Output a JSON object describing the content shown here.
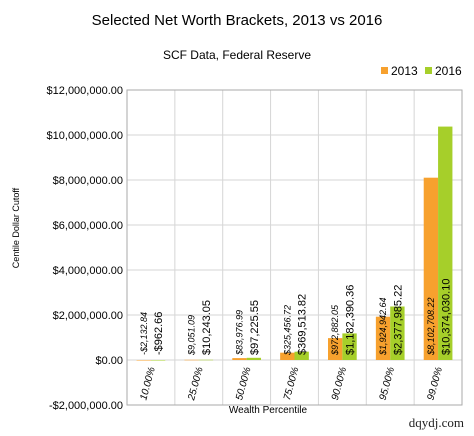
{
  "chart_data": {
    "type": "bar",
    "title": "Selected Net Worth Brackets, 2013 vs 2016",
    "subtitle": "SCF Data, Federal Reserve",
    "xlabel": "Wealth Percentile",
    "ylabel": "Centile Dollar Cutoff",
    "ylim": [
      -2000000,
      12000000
    ],
    "yticks": [
      -2000000,
      0,
      2000000,
      4000000,
      6000000,
      8000000,
      10000000,
      12000000
    ],
    "ytick_labels": [
      "-$2,000,000.00",
      "$0.00",
      "$2,000,000.00",
      "$4,000,000.00",
      "$6,000,000.00",
      "$8,000,000.00",
      "$10,000,000.00",
      "$12,000,000.00"
    ],
    "grid": true,
    "legend": "top-right",
    "categories": [
      "10.00%",
      "25.00%",
      "50.00%",
      "75.00%",
      "90.00%",
      "95.00%",
      "99.00%"
    ],
    "series": [
      {
        "name": "2013",
        "color": "#f7a12e",
        "values": [
          -2132.84,
          9051.09,
          83976.99,
          325456.72,
          972882.05,
          1924942.64,
          8102708.22
        ],
        "labels": [
          "-$2,132.84",
          "$9,051.09",
          "$83,976.99",
          "$325,456.72",
          "$972,882.05",
          "$1,924,942.64",
          "$8,102,708.22"
        ]
      },
      {
        "name": "2016",
        "color": "#a6cf2a",
        "values": [
          -962.66,
          10243.05,
          97225.55,
          369513.82,
          1182390.36,
          2377985.22,
          10374030.1
        ],
        "labels": [
          "-$962.66",
          "$10,243.05",
          "$97,225.55",
          "$369,513.82",
          "$1,182,390.36",
          "$2,377,985.22",
          "$10,374,030.10"
        ]
      }
    ]
  },
  "watermark": "dqydj.com"
}
